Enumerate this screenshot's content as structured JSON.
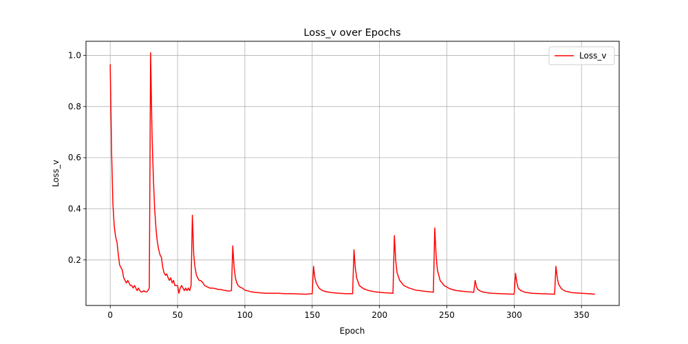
{
  "chart_data": {
    "type": "line",
    "title": "Loss_v over Epochs",
    "xlabel": "Epoch",
    "ylabel": "Loss_v",
    "xlim": [
      -18,
      378
    ],
    "ylim": [
      0.022,
      1.055
    ],
    "xticks": [
      0,
      50,
      100,
      150,
      200,
      250,
      300,
      350
    ],
    "yticks": [
      0.2,
      0.4,
      0.6,
      0.8,
      1.0
    ],
    "xtick_labels": [
      "0",
      "50",
      "100",
      "150",
      "200",
      "250",
      "300",
      "350"
    ],
    "ytick_labels": [
      "0.2",
      "0.4",
      "0.6",
      "0.8",
      "1.0"
    ],
    "grid": true,
    "legend_position": "top-right",
    "colors": {
      "line": "#ff0000",
      "grid": "#b0b0b0",
      "axes": "#000000"
    },
    "series": [
      {
        "name": "Loss_v",
        "color": "#ff0000",
        "x": [
          0,
          1,
          2,
          3,
          4,
          5,
          6,
          7,
          8,
          9,
          10,
          11,
          12,
          13,
          14,
          15,
          16,
          17,
          18,
          19,
          20,
          21,
          22,
          23,
          24,
          25,
          26,
          27,
          28,
          29,
          30,
          31,
          32,
          33,
          34,
          35,
          36,
          37,
          38,
          39,
          40,
          41,
          42,
          43,
          44,
          45,
          46,
          47,
          48,
          49,
          50,
          51,
          52,
          53,
          54,
          55,
          56,
          57,
          58,
          59,
          60,
          61,
          62,
          63,
          64,
          65,
          66,
          67,
          68,
          69,
          70,
          72,
          74,
          76,
          78,
          80,
          82,
          84,
          86,
          88,
          90,
          91,
          92,
          93,
          94,
          95,
          96,
          98,
          100,
          105,
          110,
          115,
          120,
          125,
          130,
          135,
          140,
          145,
          150,
          151,
          152,
          153,
          155,
          157,
          160,
          165,
          170,
          175,
          180,
          181,
          182,
          183,
          185,
          188,
          192,
          197,
          203,
          210,
          211,
          212,
          213,
          215,
          218,
          222,
          227,
          233,
          240,
          241,
          242,
          243,
          245,
          248,
          252,
          257,
          263,
          270,
          271,
          272,
          273,
          275,
          278,
          283,
          290,
          300,
          301,
          302,
          303,
          305,
          308,
          313,
          320,
          330,
          331,
          332,
          333,
          335,
          338,
          343,
          350,
          355,
          360
        ],
        "values": [
          0.965,
          0.62,
          0.42,
          0.33,
          0.29,
          0.27,
          0.22,
          0.18,
          0.17,
          0.16,
          0.13,
          0.12,
          0.11,
          0.12,
          0.11,
          0.1,
          0.1,
          0.09,
          0.1,
          0.09,
          0.08,
          0.09,
          0.08,
          0.075,
          0.075,
          0.08,
          0.075,
          0.075,
          0.08,
          0.09,
          1.01,
          0.7,
          0.52,
          0.4,
          0.32,
          0.27,
          0.24,
          0.22,
          0.21,
          0.17,
          0.15,
          0.14,
          0.145,
          0.13,
          0.12,
          0.13,
          0.11,
          0.12,
          0.1,
          0.1,
          0.1,
          0.07,
          0.09,
          0.1,
          0.09,
          0.08,
          0.09,
          0.08,
          0.09,
          0.08,
          0.1,
          0.375,
          0.22,
          0.17,
          0.14,
          0.13,
          0.12,
          0.12,
          0.115,
          0.11,
          0.1,
          0.095,
          0.09,
          0.09,
          0.088,
          0.085,
          0.085,
          0.082,
          0.08,
          0.078,
          0.08,
          0.255,
          0.17,
          0.13,
          0.11,
          0.1,
          0.095,
          0.09,
          0.082,
          0.075,
          0.072,
          0.07,
          0.07,
          0.07,
          0.068,
          0.068,
          0.067,
          0.066,
          0.068,
          0.175,
          0.13,
          0.11,
          0.09,
          0.082,
          0.076,
          0.072,
          0.07,
          0.068,
          0.068,
          0.24,
          0.17,
          0.13,
          0.1,
          0.088,
          0.08,
          0.075,
          0.072,
          0.07,
          0.295,
          0.2,
          0.15,
          0.12,
          0.1,
          0.09,
          0.082,
          0.078,
          0.074,
          0.325,
          0.22,
          0.16,
          0.12,
          0.1,
          0.088,
          0.08,
          0.077,
          0.074,
          0.12,
          0.095,
          0.085,
          0.078,
          0.073,
          0.07,
          0.068,
          0.066,
          0.148,
          0.11,
          0.09,
          0.08,
          0.074,
          0.07,
          0.068,
          0.066,
          0.175,
          0.13,
          0.105,
          0.088,
          0.078,
          0.072,
          0.07,
          0.068,
          0.066
        ]
      }
    ]
  }
}
